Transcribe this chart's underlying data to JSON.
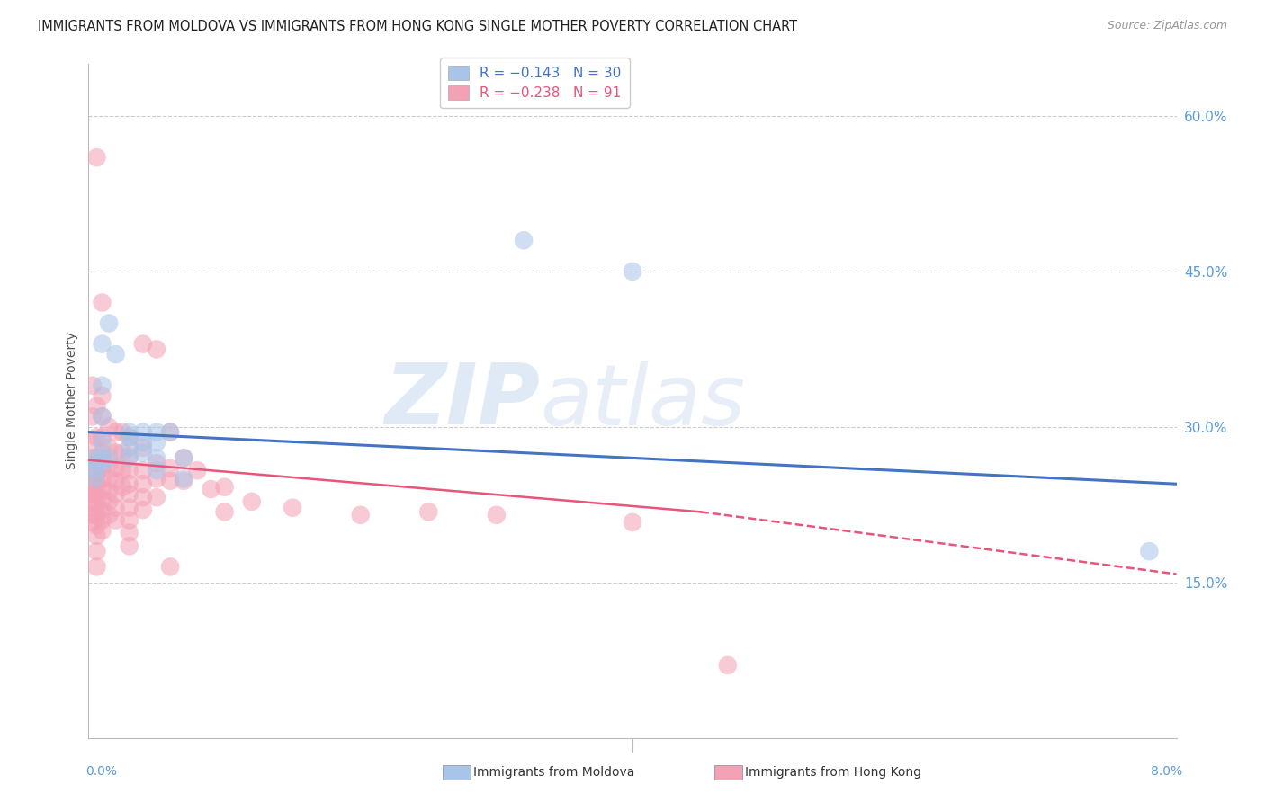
{
  "title": "IMMIGRANTS FROM MOLDOVA VS IMMIGRANTS FROM HONG KONG SINGLE MOTHER POVERTY CORRELATION CHART",
  "source": "Source: ZipAtlas.com",
  "ylabel": "Single Mother Poverty",
  "right_yticks": [
    "60.0%",
    "45.0%",
    "30.0%",
    "15.0%"
  ],
  "right_ytick_vals": [
    0.6,
    0.45,
    0.3,
    0.15
  ],
  "xlim": [
    0.0,
    0.08
  ],
  "ylim": [
    0.0,
    0.65
  ],
  "moldova_color": "#a8c4e8",
  "hongkong_color": "#f4a0b5",
  "moldova_line_color": "#4472c4",
  "hongkong_line_color": "#e8547a",
  "background_color": "#ffffff",
  "watermark_zip": "ZIP",
  "watermark_atlas": "atlas",
  "grid_color": "#cccccc",
  "moldova_scatter": [
    [
      0.0005,
      0.27
    ],
    [
      0.0005,
      0.265
    ],
    [
      0.0005,
      0.258
    ],
    [
      0.0005,
      0.25
    ],
    [
      0.001,
      0.38
    ],
    [
      0.001,
      0.34
    ],
    [
      0.001,
      0.31
    ],
    [
      0.001,
      0.285
    ],
    [
      0.001,
      0.27
    ],
    [
      0.001,
      0.265
    ],
    [
      0.0015,
      0.4
    ],
    [
      0.0015,
      0.27
    ],
    [
      0.002,
      0.37
    ],
    [
      0.003,
      0.295
    ],
    [
      0.003,
      0.29
    ],
    [
      0.003,
      0.28
    ],
    [
      0.003,
      0.27
    ],
    [
      0.004,
      0.295
    ],
    [
      0.004,
      0.285
    ],
    [
      0.004,
      0.275
    ],
    [
      0.005,
      0.295
    ],
    [
      0.005,
      0.285
    ],
    [
      0.005,
      0.27
    ],
    [
      0.005,
      0.258
    ],
    [
      0.006,
      0.295
    ],
    [
      0.007,
      0.27
    ],
    [
      0.007,
      0.25
    ],
    [
      0.032,
      0.48
    ],
    [
      0.04,
      0.45
    ],
    [
      0.078,
      0.18
    ]
  ],
  "hongkong_scatter": [
    [
      0.0003,
      0.34
    ],
    [
      0.0003,
      0.31
    ],
    [
      0.0003,
      0.285
    ],
    [
      0.0003,
      0.27
    ],
    [
      0.0003,
      0.26
    ],
    [
      0.0003,
      0.255
    ],
    [
      0.0003,
      0.25
    ],
    [
      0.0003,
      0.245
    ],
    [
      0.0003,
      0.24
    ],
    [
      0.0003,
      0.235
    ],
    [
      0.0003,
      0.228
    ],
    [
      0.0003,
      0.222
    ],
    [
      0.0003,
      0.215
    ],
    [
      0.0003,
      0.208
    ],
    [
      0.0006,
      0.56
    ],
    [
      0.0006,
      0.32
    ],
    [
      0.0006,
      0.29
    ],
    [
      0.0006,
      0.27
    ],
    [
      0.0006,
      0.255
    ],
    [
      0.0006,
      0.245
    ],
    [
      0.0006,
      0.235
    ],
    [
      0.0006,
      0.225
    ],
    [
      0.0006,
      0.215
    ],
    [
      0.0006,
      0.205
    ],
    [
      0.0006,
      0.195
    ],
    [
      0.0006,
      0.18
    ],
    [
      0.0006,
      0.165
    ],
    [
      0.001,
      0.42
    ],
    [
      0.001,
      0.33
    ],
    [
      0.001,
      0.31
    ],
    [
      0.001,
      0.29
    ],
    [
      0.001,
      0.275
    ],
    [
      0.001,
      0.26
    ],
    [
      0.001,
      0.25
    ],
    [
      0.001,
      0.24
    ],
    [
      0.001,
      0.23
    ],
    [
      0.001,
      0.22
    ],
    [
      0.001,
      0.21
    ],
    [
      0.001,
      0.2
    ],
    [
      0.0015,
      0.3
    ],
    [
      0.0015,
      0.28
    ],
    [
      0.0015,
      0.265
    ],
    [
      0.0015,
      0.25
    ],
    [
      0.0015,
      0.238
    ],
    [
      0.0015,
      0.228
    ],
    [
      0.0015,
      0.215
    ],
    [
      0.002,
      0.295
    ],
    [
      0.002,
      0.275
    ],
    [
      0.002,
      0.26
    ],
    [
      0.002,
      0.248
    ],
    [
      0.002,
      0.235
    ],
    [
      0.002,
      0.222
    ],
    [
      0.002,
      0.21
    ],
    [
      0.0025,
      0.295
    ],
    [
      0.0025,
      0.275
    ],
    [
      0.0025,
      0.258
    ],
    [
      0.0025,
      0.242
    ],
    [
      0.003,
      0.29
    ],
    [
      0.003,
      0.272
    ],
    [
      0.003,
      0.258
    ],
    [
      0.003,
      0.245
    ],
    [
      0.003,
      0.235
    ],
    [
      0.003,
      0.222
    ],
    [
      0.003,
      0.21
    ],
    [
      0.003,
      0.198
    ],
    [
      0.003,
      0.185
    ],
    [
      0.004,
      0.38
    ],
    [
      0.004,
      0.28
    ],
    [
      0.004,
      0.258
    ],
    [
      0.004,
      0.245
    ],
    [
      0.004,
      0.232
    ],
    [
      0.004,
      0.22
    ],
    [
      0.005,
      0.375
    ],
    [
      0.005,
      0.265
    ],
    [
      0.005,
      0.25
    ],
    [
      0.005,
      0.232
    ],
    [
      0.006,
      0.295
    ],
    [
      0.006,
      0.26
    ],
    [
      0.006,
      0.248
    ],
    [
      0.006,
      0.165
    ],
    [
      0.007,
      0.27
    ],
    [
      0.007,
      0.248
    ],
    [
      0.008,
      0.258
    ],
    [
      0.009,
      0.24
    ],
    [
      0.01,
      0.242
    ],
    [
      0.01,
      0.218
    ],
    [
      0.012,
      0.228
    ],
    [
      0.015,
      0.222
    ],
    [
      0.02,
      0.215
    ],
    [
      0.025,
      0.218
    ],
    [
      0.03,
      0.215
    ],
    [
      0.04,
      0.208
    ],
    [
      0.047,
      0.07
    ]
  ]
}
